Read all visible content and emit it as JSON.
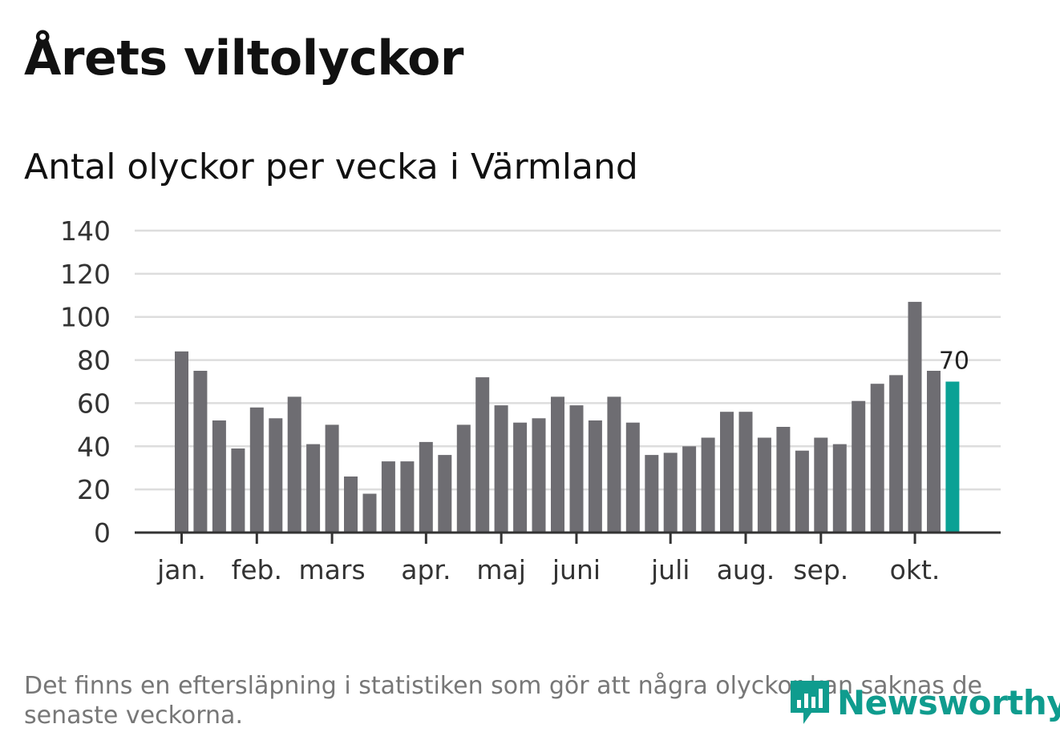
{
  "header": {
    "title": "Årets viltolyckor",
    "subtitle": "Antal olyckor per vecka i Värmland"
  },
  "footer": {
    "note": "Det finns en eftersläpning i statistiken som gör att några olyckor kan saknas de senaste veckorna.",
    "brand": "Newsworthy",
    "logo_icon": "bar-chart-speech-bubble-icon"
  },
  "colors": {
    "bar": "#6e6d72",
    "highlight": "#0aa195",
    "grid": "#dddddd",
    "axis": "#333333",
    "brand": "#0f9c8e"
  },
  "chart_data": {
    "type": "bar",
    "title": "Antal olyckor per vecka i Värmland",
    "xlabel": "",
    "ylabel": "",
    "ylim": [
      0,
      140
    ],
    "yticks": [
      0,
      20,
      40,
      60,
      80,
      100,
      120,
      140
    ],
    "grid": true,
    "values": [
      84,
      75,
      52,
      39,
      58,
      53,
      63,
      41,
      50,
      26,
      18,
      33,
      33,
      42,
      36,
      50,
      72,
      59,
      51,
      53,
      63,
      59,
      52,
      63,
      51,
      36,
      37,
      40,
      44,
      56,
      56,
      44,
      49,
      38,
      44,
      41,
      61,
      69,
      73,
      107,
      75,
      70
    ],
    "highlight_last": true,
    "annotation": "70",
    "month_labels": [
      {
        "label": "jan.",
        "week": 1
      },
      {
        "label": "feb.",
        "week": 5
      },
      {
        "label": "mars",
        "week": 9
      },
      {
        "label": "apr.",
        "week": 14
      },
      {
        "label": "maj",
        "week": 18
      },
      {
        "label": "juni",
        "week": 22
      },
      {
        "label": "juli",
        "week": 27
      },
      {
        "label": "aug.",
        "week": 31
      },
      {
        "label": "sep.",
        "week": 35
      },
      {
        "label": "okt.",
        "week": 40
      }
    ]
  }
}
